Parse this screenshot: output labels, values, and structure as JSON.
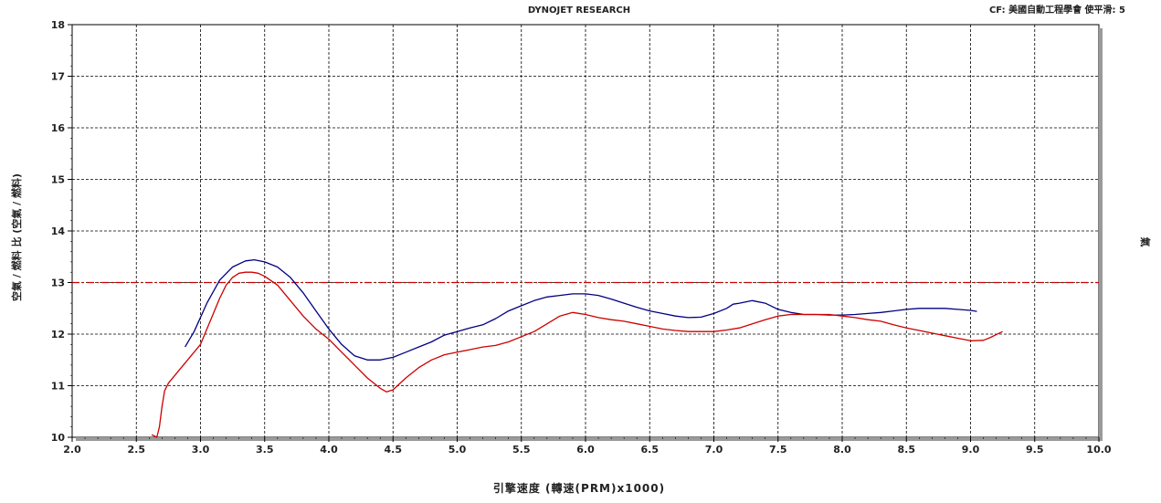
{
  "header": {
    "title": "DYNOJET RESEARCH",
    "correction": "CF: 美國自動工程學會  使平滑: 5",
    "right_side_label": "氣"
  },
  "chart_data": {
    "type": "line",
    "xlabel": "引擎速度 (轉速(PRM)x1000)",
    "ylabel": "空氣 / 燃料 比 (空氣 / 燃料)",
    "xlim": [
      2.0,
      10.0
    ],
    "ylim": [
      10,
      18
    ],
    "x_ticks": [
      "2.0",
      "2.5",
      "3.0",
      "3.5",
      "4.0",
      "4.5",
      "5.0",
      "5.5",
      "6.0",
      "6.5",
      "7.0",
      "7.5",
      "8.0",
      "8.5",
      "9.0",
      "9.5",
      "10.0"
    ],
    "y_ticks": [
      "10",
      "11",
      "12",
      "13",
      "14",
      "15",
      "16",
      "17",
      "18"
    ],
    "grid": true,
    "reference_line": {
      "y": 13.0,
      "color": "#cc0000"
    },
    "series": [
      {
        "color": "#000080",
        "x": [
          2.88,
          2.95,
          3.05,
          3.15,
          3.25,
          3.35,
          3.42,
          3.5,
          3.6,
          3.7,
          3.8,
          3.9,
          4.0,
          4.1,
          4.2,
          4.3,
          4.4,
          4.5,
          4.6,
          4.7,
          4.8,
          4.9,
          5.0,
          5.1,
          5.2,
          5.3,
          5.4,
          5.5,
          5.6,
          5.7,
          5.8,
          5.9,
          6.0,
          6.1,
          6.2,
          6.3,
          6.4,
          6.5,
          6.6,
          6.7,
          6.8,
          6.9,
          7.0,
          7.1,
          7.15,
          7.2,
          7.3,
          7.4,
          7.5,
          7.6,
          7.7,
          7.8,
          7.9,
          8.0,
          8.1,
          8.2,
          8.3,
          8.4,
          8.5,
          8.6,
          8.7,
          8.8,
          8.9,
          9.0,
          9.05
        ],
        "values": [
          11.75,
          12.05,
          12.6,
          13.05,
          13.3,
          13.42,
          13.44,
          13.4,
          13.3,
          13.1,
          12.8,
          12.45,
          12.1,
          11.8,
          11.58,
          11.5,
          11.5,
          11.55,
          11.65,
          11.75,
          11.85,
          11.98,
          12.05,
          12.12,
          12.18,
          12.3,
          12.45,
          12.55,
          12.65,
          12.72,
          12.75,
          12.78,
          12.78,
          12.75,
          12.68,
          12.6,
          12.52,
          12.45,
          12.4,
          12.35,
          12.32,
          12.33,
          12.4,
          12.5,
          12.58,
          12.6,
          12.65,
          12.6,
          12.48,
          12.42,
          12.38,
          12.38,
          12.37,
          12.37,
          12.38,
          12.4,
          12.42,
          12.45,
          12.48,
          12.5,
          12.5,
          12.5,
          12.48,
          12.46,
          12.44
        ]
      },
      {
        "color": "#cc0000",
        "x": [
          2.62,
          2.66,
          2.68,
          2.7,
          2.72,
          2.75,
          2.8,
          2.9,
          3.0,
          3.05,
          3.1,
          3.15,
          3.2,
          3.25,
          3.3,
          3.35,
          3.4,
          3.45,
          3.5,
          3.6,
          3.7,
          3.8,
          3.9,
          4.0,
          4.1,
          4.2,
          4.3,
          4.4,
          4.45,
          4.5,
          4.6,
          4.7,
          4.8,
          4.9,
          5.0,
          5.1,
          5.2,
          5.3,
          5.4,
          5.5,
          5.6,
          5.7,
          5.8,
          5.9,
          6.0,
          6.1,
          6.2,
          6.3,
          6.4,
          6.5,
          6.6,
          6.7,
          6.8,
          6.9,
          7.0,
          7.1,
          7.2,
          7.3,
          7.4,
          7.5,
          7.6,
          7.7,
          7.8,
          7.9,
          8.0,
          8.1,
          8.2,
          8.3,
          8.4,
          8.5,
          8.6,
          8.7,
          8.8,
          8.9,
          9.0,
          9.1,
          9.15,
          9.2,
          9.25
        ],
        "values": [
          10.05,
          10.0,
          10.2,
          10.6,
          10.9,
          11.05,
          11.2,
          11.5,
          11.8,
          12.1,
          12.4,
          12.7,
          12.95,
          13.1,
          13.18,
          13.2,
          13.2,
          13.18,
          13.12,
          12.95,
          12.65,
          12.35,
          12.1,
          11.9,
          11.65,
          11.4,
          11.15,
          10.95,
          10.88,
          10.92,
          11.15,
          11.35,
          11.5,
          11.6,
          11.65,
          11.7,
          11.75,
          11.78,
          11.85,
          11.95,
          12.05,
          12.2,
          12.35,
          12.42,
          12.38,
          12.32,
          12.28,
          12.25,
          12.2,
          12.15,
          12.1,
          12.07,
          12.05,
          12.05,
          12.05,
          12.08,
          12.12,
          12.2,
          12.28,
          12.35,
          12.38,
          12.38,
          12.38,
          12.38,
          12.35,
          12.32,
          12.28,
          12.25,
          12.18,
          12.12,
          12.07,
          12.02,
          11.97,
          11.92,
          11.87,
          11.88,
          11.93,
          11.99,
          12.05
        ]
      }
    ]
  }
}
